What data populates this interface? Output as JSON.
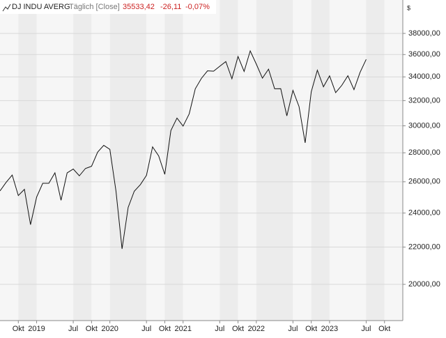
{
  "chart_data": {
    "type": "line",
    "title": "DJ INDU AVERG",
    "subtitle": "Täglich [Close]",
    "last_value": "35533,42",
    "change": "-26,11",
    "change_pct": "-0,07%",
    "currency": "$",
    "log_scale": true,
    "grid": true,
    "xlim": [
      "2018-07",
      "2024-01"
    ],
    "ylim": [
      18230,
      41390
    ],
    "xticks": [
      {
        "value": "2018-10",
        "label": "Okt"
      },
      {
        "value": "2019-01",
        "label": "2019"
      },
      {
        "value": "2019-07",
        "label": "Jul"
      },
      {
        "value": "2019-10",
        "label": "Okt"
      },
      {
        "value": "2020-01",
        "label": "2020"
      },
      {
        "value": "2020-07",
        "label": "Jul"
      },
      {
        "value": "2020-10",
        "label": "Okt"
      },
      {
        "value": "2021-01",
        "label": "2021"
      },
      {
        "value": "2021-07",
        "label": "Jul"
      },
      {
        "value": "2021-10",
        "label": "Okt"
      },
      {
        "value": "2022-01",
        "label": "2022"
      },
      {
        "value": "2022-07",
        "label": "Jul"
      },
      {
        "value": "2022-10",
        "label": "Okt"
      },
      {
        "value": "2023-01",
        "label": "2023"
      },
      {
        "value": "2023-07",
        "label": "Jul"
      },
      {
        "value": "2023-10",
        "label": "Okt"
      }
    ],
    "yticks": [
      {
        "value": 20000,
        "label": "20000,00"
      },
      {
        "value": 22000,
        "label": "22000,00"
      },
      {
        "value": 24000,
        "label": "24000,00"
      },
      {
        "value": 26000,
        "label": "26000,00"
      },
      {
        "value": 28000,
        "label": "28000,00"
      },
      {
        "value": 30000,
        "label": "30000,00"
      },
      {
        "value": 32000,
        "label": "32000,00"
      },
      {
        "value": 34000,
        "label": "34000,00"
      },
      {
        "value": 36000,
        "label": "36000,00"
      },
      {
        "value": 38000,
        "label": "38000,00"
      }
    ],
    "x": [
      "2018-07",
      "2018-08",
      "2018-09",
      "2018-10",
      "2018-11",
      "2018-12",
      "2019-01",
      "2019-02",
      "2019-03",
      "2019-04",
      "2019-05",
      "2019-06",
      "2019-07",
      "2019-08",
      "2019-09",
      "2019-10",
      "2019-11",
      "2019-12",
      "2020-01",
      "2020-02",
      "2020-03",
      "2020-04",
      "2020-05",
      "2020-06",
      "2020-07",
      "2020-08",
      "2020-09",
      "2020-10",
      "2020-11",
      "2020-12",
      "2021-01",
      "2021-02",
      "2021-03",
      "2021-04",
      "2021-05",
      "2021-06",
      "2021-07",
      "2021-08",
      "2021-09",
      "2021-10",
      "2021-11",
      "2021-12",
      "2022-01",
      "2022-02",
      "2022-03",
      "2022-04",
      "2022-05",
      "2022-06",
      "2022-07",
      "2022-08",
      "2022-09",
      "2022-10",
      "2022-11",
      "2022-12",
      "2023-01",
      "2023-02",
      "2023-03",
      "2023-04",
      "2023-05",
      "2023-06",
      "2023-07"
    ],
    "series": [
      {
        "name": "DJ INDU AVERG",
        "color": "#111111",
        "values": [
          25400,
          25960,
          26450,
          25100,
          25500,
          23300,
          25000,
          25900,
          25900,
          26600,
          24800,
          26600,
          26860,
          26400,
          26900,
          27050,
          28050,
          28540,
          28250,
          25400,
          21900,
          24350,
          25380,
          25810,
          26430,
          28430,
          27780,
          26500,
          29640,
          30600,
          29980,
          30930,
          32980,
          33870,
          34530,
          34500,
          34935,
          35360,
          33840,
          35820,
          34480,
          36340,
          35130,
          33890,
          34680,
          32980,
          32990,
          30775,
          32845,
          31510,
          28725,
          32730,
          34590,
          33150,
          34090,
          32660,
          33270,
          34100,
          32910,
          34400,
          35560
        ]
      }
    ]
  }
}
